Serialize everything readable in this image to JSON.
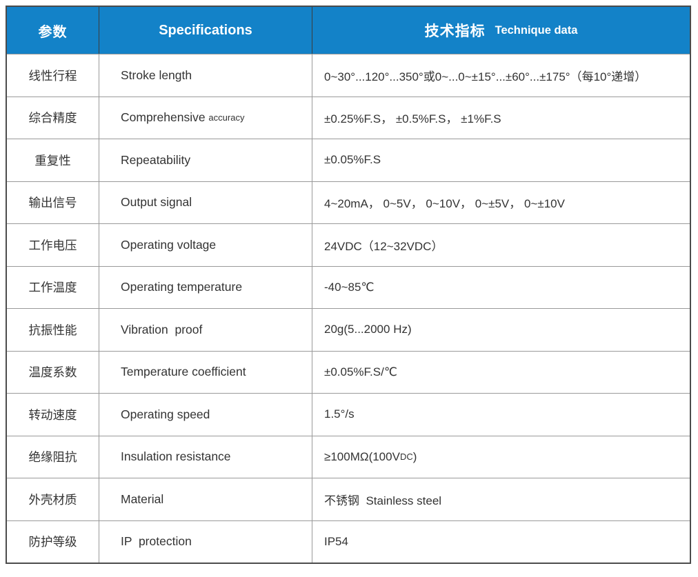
{
  "accent_color": "#1382c8",
  "grid_color": "#999999",
  "table": {
    "header": {
      "param_cn": "参数",
      "spec_en": "Specifications",
      "technique_cn": "技术指标",
      "technique_en": "Technique data"
    },
    "rows": [
      {
        "cn": "线性行程",
        "en": "Stroke length",
        "value": "0~30°...120°...350°或0~...0~±15°...±60°...±175°（每10°递增）"
      },
      {
        "cn": "综合精度",
        "en_parts": [
          {
            "t": "Comprehensive "
          },
          {
            "t": "accuracy",
            "small": true
          }
        ],
        "value": "±0.25%F.S， ±0.5%F.S， ±1%F.S"
      },
      {
        "cn": "重复性",
        "en": "Repeatability",
        "value": "±0.05%F.S"
      },
      {
        "cn": "输出信号",
        "en": "Output signal",
        "value": "4~20mA， 0~5V， 0~10V， 0~±5V， 0~±10V"
      },
      {
        "cn": "工作电压",
        "en": "Operating voltage",
        "value": "24VDC（12~32VDC）"
      },
      {
        "cn": "工作温度",
        "en": "Operating temperature",
        "value": "-40~85℃"
      },
      {
        "cn": "抗振性能",
        "en": "Vibration  proof",
        "value": "20g(5...2000 Hz)"
      },
      {
        "cn": "温度系数",
        "en": "Temperature coefficient",
        "value": "±0.05%F.S/℃"
      },
      {
        "cn": "转动速度",
        "en": "Operating speed",
        "value": "1.5°/s"
      },
      {
        "cn": "绝缘阻抗",
        "en": "Insulation resistance",
        "value_parts": [
          {
            "t": "≥100MΩ(100V"
          },
          {
            "t": "DC",
            "small": true
          },
          {
            "t": ")"
          }
        ]
      },
      {
        "cn": "外壳材质",
        "en": "Material",
        "value": "不锈钢  Stainless steel"
      },
      {
        "cn": "防护等级",
        "en": "IP  protection",
        "value": "IP54"
      }
    ]
  }
}
